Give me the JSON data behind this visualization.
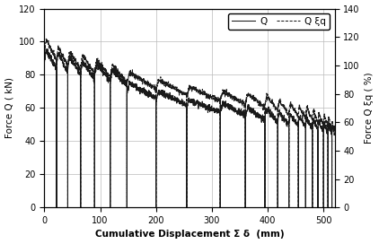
{
  "xlabel": "Cumulative Displacement Σ δ  (mm)",
  "ylabel_left": "Force Q ( kN)",
  "ylabel_right": "Force Q ξq ( %)",
  "xlim": [
    0,
    520
  ],
  "ylim_left": [
    0,
    120
  ],
  "ylim_right": [
    0,
    140
  ],
  "xticks": [
    0,
    100,
    200,
    300,
    400,
    500
  ],
  "yticks_left": [
    0,
    20,
    40,
    60,
    80,
    100,
    120
  ],
  "yticks_right": [
    0,
    20,
    40,
    60,
    80,
    100,
    120,
    140
  ],
  "legend_Q": "Q",
  "legend_Qxi": "Q ξq",
  "line_color": "#1a1a1a",
  "background_color": "#ffffff",
  "grid_color": "#bbbbbb",
  "drop_positions": [
    22,
    42,
    65,
    90,
    118,
    148,
    200,
    255,
    315,
    360,
    395,
    418,
    438,
    455,
    468,
    480,
    490,
    500,
    508,
    515,
    520
  ],
  "q_peaks": [
    95,
    93,
    91,
    88,
    87,
    83,
    75,
    70,
    65,
    63,
    60,
    59,
    57,
    56,
    55,
    54,
    53,
    52,
    51,
    50,
    48
  ],
  "qxi_peaks": [
    118,
    113,
    110,
    107,
    104,
    100,
    95,
    90,
    85,
    82,
    80,
    78,
    75,
    73,
    71,
    70,
    68,
    66,
    65,
    63,
    60
  ]
}
